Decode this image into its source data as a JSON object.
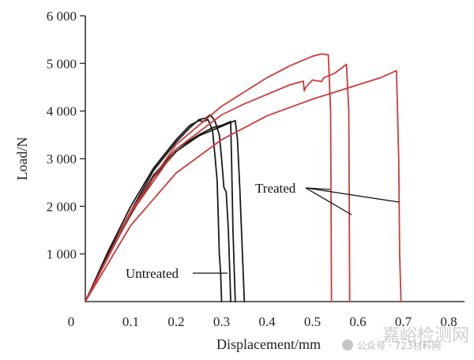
{
  "chart_data": {
    "type": "line",
    "title": "",
    "xlabel": "Displacement/mm",
    "ylabel": "Load/N",
    "xlim": [
      0,
      0.8
    ],
    "ylim": [
      0,
      6000
    ],
    "x_ticks": [
      0,
      0.1,
      0.2,
      0.3,
      0.4,
      0.5,
      0.6,
      0.7,
      0.8
    ],
    "x_tick_labels": [
      "0",
      "0.1",
      "0.2",
      "0.3",
      "0.4",
      "0.5",
      "0.6",
      "0.7",
      "0.8"
    ],
    "y_ticks": [
      1000,
      2000,
      3000,
      4000,
      5000,
      6000
    ],
    "y_tick_labels": [
      "1 000",
      "2 000",
      "3 000",
      "4 000",
      "5 000",
      "6 000"
    ],
    "grid": false,
    "series": [
      {
        "group": "Untreated",
        "color": "#1a1a1a",
        "points": [
          [
            0,
            0
          ],
          [
            0.05,
            1000
          ],
          [
            0.1,
            1900
          ],
          [
            0.15,
            2750
          ],
          [
            0.2,
            3350
          ],
          [
            0.23,
            3650
          ],
          [
            0.25,
            3820
          ],
          [
            0.265,
            3850
          ],
          [
            0.275,
            3920
          ],
          [
            0.285,
            3800
          ],
          [
            0.295,
            3500
          ],
          [
            0.3,
            3000
          ],
          [
            0.305,
            2400
          ],
          [
            0.31,
            2300
          ],
          [
            0.315,
            1500
          ],
          [
            0.318,
            600
          ],
          [
            0.32,
            0
          ]
        ]
      },
      {
        "group": "Untreated",
        "color": "#1a1a1a",
        "points": [
          [
            0,
            0
          ],
          [
            0.05,
            1050
          ],
          [
            0.1,
            2000
          ],
          [
            0.15,
            2800
          ],
          [
            0.2,
            3400
          ],
          [
            0.23,
            3700
          ],
          [
            0.25,
            3800
          ],
          [
            0.26,
            3780
          ],
          [
            0.27,
            3820
          ],
          [
            0.28,
            3600
          ],
          [
            0.285,
            3100
          ],
          [
            0.29,
            2550
          ],
          [
            0.292,
            2000
          ],
          [
            0.295,
            1000
          ],
          [
            0.298,
            600
          ],
          [
            0.3,
            0
          ]
        ]
      },
      {
        "group": "Untreated",
        "color": "#1a1a1a",
        "points": [
          [
            0,
            0
          ],
          [
            0.05,
            980
          ],
          [
            0.1,
            1880
          ],
          [
            0.15,
            2650
          ],
          [
            0.2,
            3200
          ],
          [
            0.25,
            3500
          ],
          [
            0.28,
            3650
          ],
          [
            0.3,
            3700
          ],
          [
            0.32,
            3780
          ],
          [
            0.322,
            3000
          ],
          [
            0.325,
            1500
          ],
          [
            0.33,
            0
          ]
        ]
      },
      {
        "group": "Untreated",
        "color": "#1a1a1a",
        "points": [
          [
            0,
            0
          ],
          [
            0.05,
            950
          ],
          [
            0.1,
            1820
          ],
          [
            0.15,
            2600
          ],
          [
            0.2,
            3150
          ],
          [
            0.25,
            3480
          ],
          [
            0.3,
            3680
          ],
          [
            0.33,
            3800
          ],
          [
            0.335,
            3400
          ],
          [
            0.34,
            2400
          ],
          [
            0.345,
            1200
          ],
          [
            0.35,
            0
          ]
        ]
      },
      {
        "group": "Treated",
        "color": "#cc3b3b",
        "points": [
          [
            0,
            0
          ],
          [
            0.1,
            1900
          ],
          [
            0.2,
            3300
          ],
          [
            0.3,
            4100
          ],
          [
            0.35,
            4400
          ],
          [
            0.4,
            4700
          ],
          [
            0.45,
            4950
          ],
          [
            0.5,
            5150
          ],
          [
            0.52,
            5200
          ],
          [
            0.535,
            5180
          ],
          [
            0.54,
            4000
          ],
          [
            0.541,
            2000
          ],
          [
            0.542,
            0
          ]
        ]
      },
      {
        "group": "Treated",
        "color": "#cc3b3b",
        "points": [
          [
            0,
            0
          ],
          [
            0.1,
            1850
          ],
          [
            0.2,
            3200
          ],
          [
            0.3,
            3920
          ],
          [
            0.35,
            4150
          ],
          [
            0.4,
            4350
          ],
          [
            0.45,
            4550
          ],
          [
            0.48,
            4630
          ],
          [
            0.482,
            4420
          ],
          [
            0.485,
            4500
          ],
          [
            0.5,
            4650
          ],
          [
            0.52,
            4620
          ],
          [
            0.525,
            4700
          ],
          [
            0.55,
            4800
          ],
          [
            0.575,
            4980
          ],
          [
            0.58,
            4000
          ],
          [
            0.581,
            2000
          ],
          [
            0.582,
            0
          ]
        ]
      },
      {
        "group": "Treated",
        "color": "#cc3b3b",
        "points": [
          [
            0,
            0
          ],
          [
            0.1,
            1600
          ],
          [
            0.2,
            2700
          ],
          [
            0.3,
            3400
          ],
          [
            0.4,
            3900
          ],
          [
            0.5,
            4250
          ],
          [
            0.6,
            4550
          ],
          [
            0.65,
            4700
          ],
          [
            0.685,
            4850
          ],
          [
            0.69,
            3000
          ],
          [
            0.692,
            1000
          ],
          [
            0.695,
            0
          ]
        ]
      }
    ],
    "annotations": [
      {
        "text": "Untreated",
        "x": 0.07,
        "y": 550
      },
      {
        "text": "Treated",
        "x": 0.37,
        "y": 2370
      }
    ]
  },
  "watermark": {
    "site": "公众号 · 723材料网",
    "brand": "嘉峪检测网"
  }
}
